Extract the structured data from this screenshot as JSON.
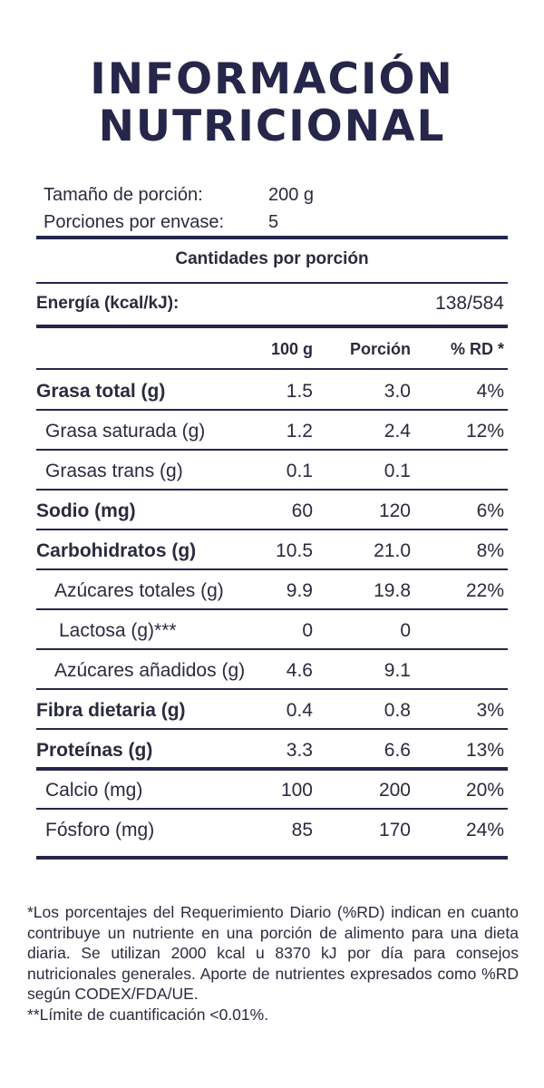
{
  "title": {
    "line1": "INFORMACIÓN",
    "line2": "NUTRICIONAL"
  },
  "serving": {
    "size_label": "Tamaño de porción:",
    "size_value": "200 g",
    "per_pack_label": "Porciones por envase:",
    "per_pack_value": "5"
  },
  "section_header": "Cantidades por porción",
  "energy": {
    "label": "Energía (kcal/kJ):",
    "value": "138/584"
  },
  "columns": {
    "per100": "100 g",
    "portion": "Porción",
    "rd": "% RD *"
  },
  "rows": [
    {
      "name": "Grasa total (g)",
      "per100": "1.5",
      "portion": "3.0",
      "rd": "4%"
    },
    {
      "name": "Grasa saturada (g)",
      "per100": "1.2",
      "portion": "2.4",
      "rd": "12%"
    },
    {
      "name": "Grasas trans (g)",
      "per100": "0.1",
      "portion": "0.1",
      "rd": ""
    },
    {
      "name": "Sodio (mg)",
      "per100": "60",
      "portion": "120",
      "rd": "6%"
    },
    {
      "name": "Carbohidratos (g)",
      "per100": "10.5",
      "portion": "21.0",
      "rd": "8%"
    },
    {
      "name": "Azúcares totales (g)",
      "per100": "9.9",
      "portion": "19.8",
      "rd": "22%"
    },
    {
      "name": "Lactosa (g)***",
      "per100": "0",
      "portion": "0",
      "rd": ""
    },
    {
      "name": "Azúcares añadidos (g)",
      "per100": "4.6",
      "portion": "9.1",
      "rd": ""
    },
    {
      "name": "Fibra dietaria (g)",
      "per100": "0.4",
      "portion": "0.8",
      "rd": "3%"
    },
    {
      "name": "Proteínas (g)",
      "per100": "3.3",
      "portion": "6.6",
      "rd": "13%"
    },
    {
      "name": "Calcio (mg)",
      "per100": "100",
      "portion": "200",
      "rd": "20%"
    },
    {
      "name": "Fósforo (mg)",
      "per100": "85",
      "portion": "170",
      "rd": "24%"
    }
  ],
  "footnotes": {
    "note1": "*Los porcentajes del Requerimiento Diario (%RD) indican en cuanto contribuye un nutriente en una porción de alimento para una dieta diaria. Se utilizan 2000 kcal u 8370 kJ por día para consejos nutricionales generales. Aporte de nutrientes expresados como %RD según CODEX/FDA/UE.",
    "note2": "**Límite de cuantificación <0.01%."
  },
  "colors": {
    "ink": "#25264a"
  }
}
